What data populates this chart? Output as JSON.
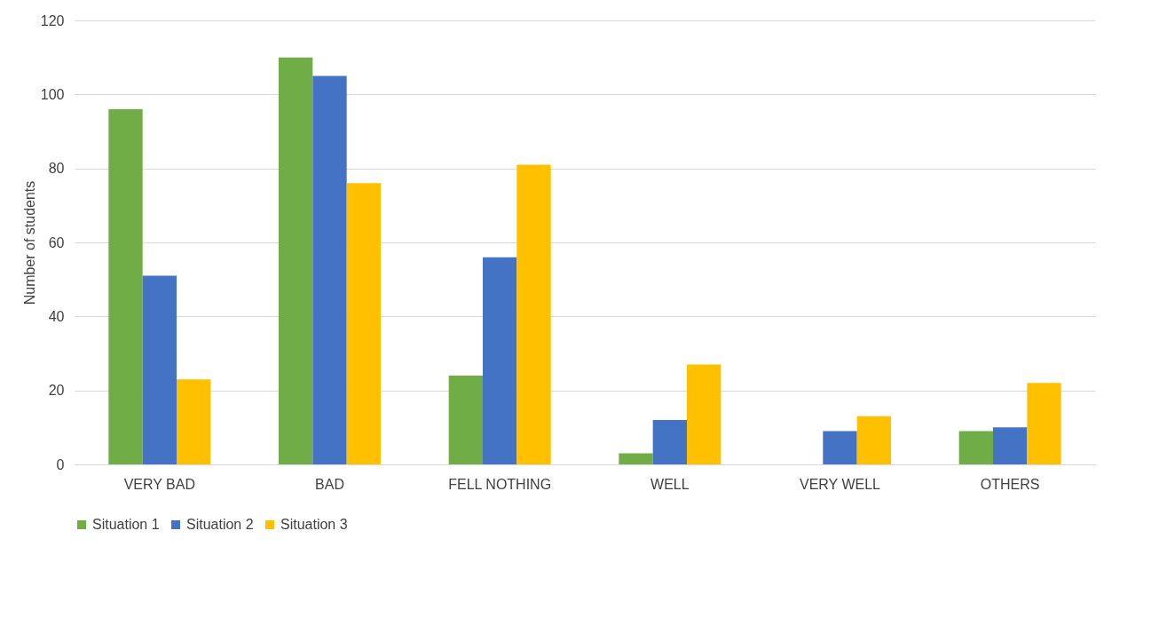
{
  "chart_data": {
    "type": "bar",
    "ylabel": "Number of students",
    "categories": [
      "VERY BAD",
      "BAD",
      "FELL NOTHING",
      "WELL",
      "VERY WELL",
      "OTHERS"
    ],
    "series": [
      {
        "name": "Situation 1",
        "color": "#70ad47",
        "values": [
          96,
          110,
          24,
          3,
          0,
          9
        ]
      },
      {
        "name": "Situation 2",
        "color": "#4472c4",
        "values": [
          51,
          105,
          56,
          12,
          9,
          10
        ]
      },
      {
        "name": "Situation 3",
        "color": "#ffc000",
        "values": [
          23,
          76,
          81,
          27,
          13,
          22
        ]
      }
    ],
    "ylim": [
      0,
      120
    ],
    "yticks": [
      0,
      20,
      40,
      60,
      80,
      100,
      120
    ],
    "grid": "y",
    "legend": "bottom"
  }
}
